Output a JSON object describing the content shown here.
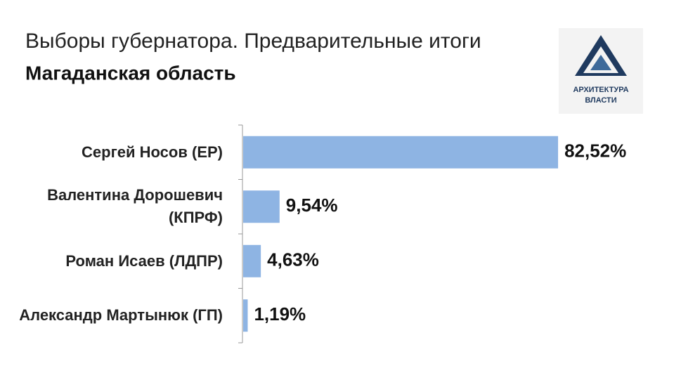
{
  "chart_data": {
    "type": "bar",
    "orientation": "horizontal",
    "title": "Выборы губернатора. Предварительные итоги",
    "subtitle": "Магаданская область",
    "logo_text": [
      "АРХИТЕКТУРА",
      "ВЛАСТИ"
    ],
    "categories": [
      "Сергей Носов (ЕР)",
      "Валентина Дорошевич (КПРФ)",
      "Роман Исаев (ЛДПР)",
      "Александр Мартынюк (ГП)"
    ],
    "values": [
      82.52,
      9.54,
      4.63,
      1.19
    ],
    "value_labels": [
      "82,52%",
      "9,54%",
      "4,63%",
      "1,19%"
    ],
    "color": "#8eb4e3"
  }
}
